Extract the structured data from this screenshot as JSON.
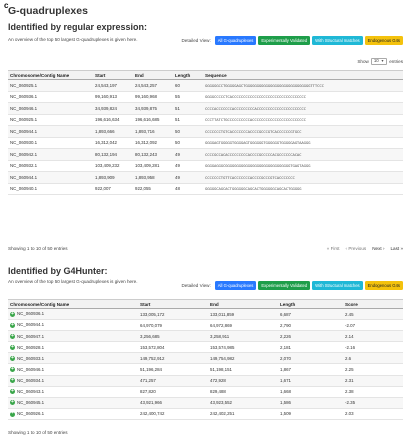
{
  "panel_letter": "c",
  "page_title": "G-quadruplexes",
  "detail_buttons": {
    "label": "Detailed View:",
    "all": "All G-quadruplexes",
    "validated": "Experimentally Validated",
    "structural": "With Structural matches",
    "endogenous": "Endogenous G4s",
    "colors": {
      "all": "#2979ff",
      "validated": "#1e9e4a",
      "structural": "#1fb8d6",
      "endogenous": "#f4c20d"
    }
  },
  "show": {
    "prefix": "Show",
    "value": "10",
    "suffix": "entries"
  },
  "regex": {
    "title": "Identified by regular expression:",
    "description": "An overview of the top 50 largest G-quadruplexes is given here.",
    "columns": [
      "Chromosome/Contig Name",
      "Start",
      "End",
      "Length",
      "Sequence"
    ],
    "rows": [
      [
        "NC_060925.1",
        "24,543,197",
        "24,543,257",
        "60",
        "GGGGGGCCTGGGGGAGCTGGGGGGGGGGGGGGGGGGGGGGGGGGGGGTTTCCC"
      ],
      [
        "NC_060936.1",
        "99,160,913",
        "99,160,968",
        "55",
        "GGGGCCCCCTCACCCCCCCCCCCCCCCCCCCCCCCCCCCCCCCCC"
      ],
      [
        "NC_060946.1",
        "34,939,824",
        "34,939,875",
        "51",
        "CCCCACCCCCCCACCCCCCCCCACCCCCCCCCCCCCCCCCCCCCC"
      ],
      [
        "NC_060925.1",
        "196,616,634",
        "196,616,685",
        "51",
        "CCCTTATCTGCCCCCCCCCCACCCCCCCCCCCCCCCCCCCCCCCC"
      ],
      [
        "NC_060944.1",
        "1,893,666",
        "1,893,716",
        "50",
        "CCCCCCCTGTCACCCCCCCACCCCGCCCGTCACCCCCCGTGCC"
      ],
      [
        "NC_060930.1",
        "16,312,042",
        "16,312,092",
        "50",
        "GGGGAGTGGGGGTGGGGAGTGGGGGGTGGGGGGTGGGGGAGTAAGGG"
      ],
      [
        "NC_060942.1",
        "80,132,194",
        "80,132,243",
        "49",
        "CCCCGCCACACCCCCCCCCACCCCGCCCCCACGCCCCCCACAC"
      ],
      [
        "NC_060932.1",
        "103,409,232",
        "103,409,281",
        "49",
        "GGGGAGGGCGGGGGGGGGGGGGGGGGGGGGGGGGGGGGTGAGTAGGG"
      ],
      [
        "NC_060944.1",
        "1,893,909",
        "1,893,958",
        "49",
        "CCCCCCCTGTTCACCCCCCCACCCCGCCCGTCACCCCCCC"
      ],
      [
        "NC_060940.1",
        "922,007",
        "922,055",
        "48",
        "GGGGGCAGCACTGGGGGGCAGCACTGGGGGGCAGCACTGGGGG"
      ]
    ],
    "info": "Showing 1 to 10 of 50 entries"
  },
  "g4hunter": {
    "title": "Identified by G4Hunter:",
    "description": "An overview of the top 50 largest G-quadruplexes is given here.",
    "columns": [
      "Chromosome/Contig Name",
      "Start",
      "End",
      "Length",
      "Score"
    ],
    "rows": [
      [
        "NC_060936.1",
        "133,005,172",
        "133,011,859",
        "6,687",
        "2.45"
      ],
      [
        "NC_060944.1",
        "64,970,079",
        "64,972,869",
        "2,790",
        "-2.07"
      ],
      [
        "NC_060947.1",
        "3,256,685",
        "3,258,911",
        "2,226",
        "2.14"
      ],
      [
        "NC_060928.1",
        "153,572,804",
        "153,574,985",
        "2,181",
        "-2.16"
      ],
      [
        "NC_060933.1",
        "149,752,912",
        "149,754,982",
        "2,070",
        "2.6"
      ],
      [
        "NC_060946.1",
        "51,196,284",
        "51,198,151",
        "1,867",
        "2.25"
      ],
      [
        "NC_060934.1",
        "471,257",
        "472,928",
        "1,671",
        "2.31"
      ],
      [
        "NC_060943.1",
        "827,820",
        "829,488",
        "1,668",
        "2.38"
      ],
      [
        "NC_060945.1",
        "43,921,966",
        "43,923,552",
        "1,586",
        "-2.35"
      ],
      [
        "NC_060926.1",
        "242,400,742",
        "242,402,251",
        "1,509",
        "2.03"
      ]
    ],
    "info": "Showing 1 to 10 of 50 entries"
  },
  "pager": {
    "first": "« First",
    "previous": "‹ Previous",
    "next": "Next ›",
    "last": "Last »"
  }
}
